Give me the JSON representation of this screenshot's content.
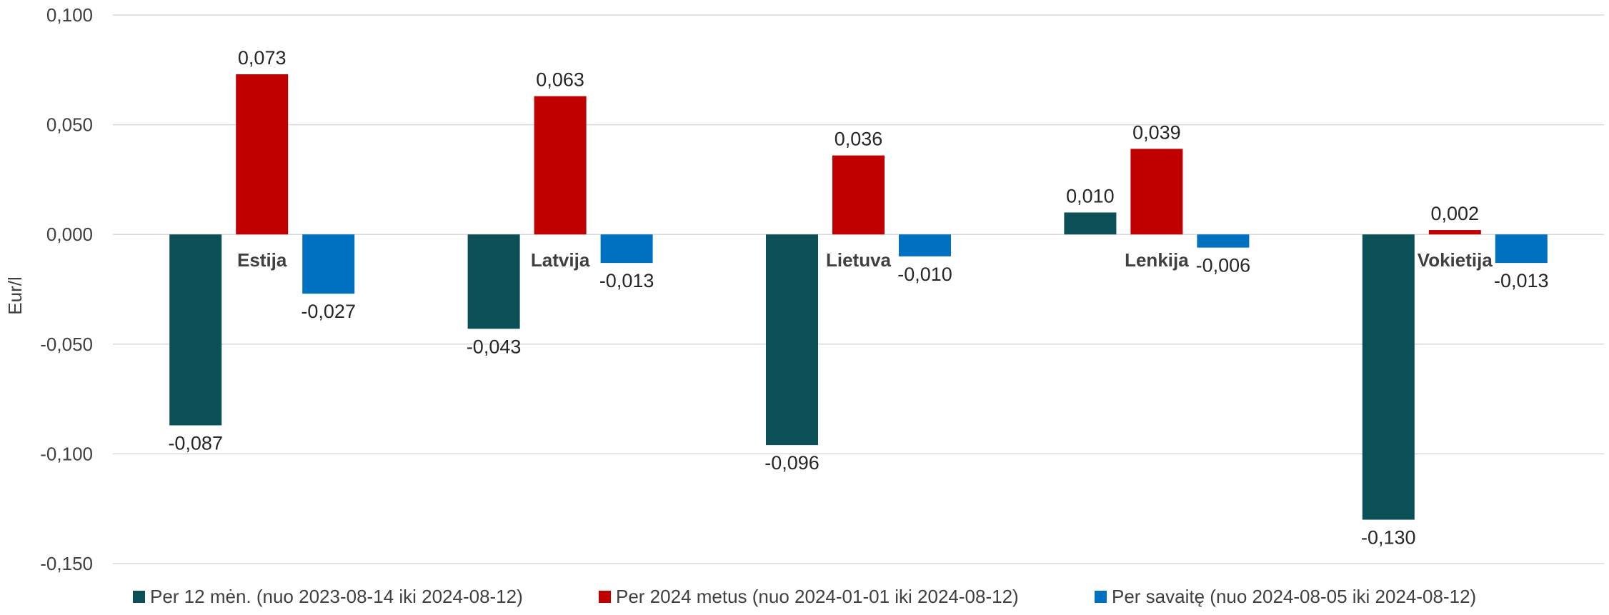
{
  "chart_data": {
    "type": "bar",
    "title": "",
    "ylabel": "Eur/l",
    "xlabel": "",
    "ylim": [
      -0.15,
      0.1
    ],
    "yticks": [
      0.1,
      0.05,
      0.0,
      -0.05,
      -0.1,
      -0.15
    ],
    "ytick_labels": [
      "0,100",
      "0,050",
      "0,000",
      "-0,050",
      "-0,100",
      "-0,150"
    ],
    "grid": true,
    "legend_position": "bottom",
    "categories": [
      "Estija",
      "Latvija",
      "Lietuva",
      "Lenkija",
      "Vokietija"
    ],
    "series": [
      {
        "name": "Per 12 mėn. (nuo 2023-08-14 iki 2024-08-12)",
        "color": "#0b4f57",
        "values": [
          -0.087,
          -0.043,
          -0.096,
          0.01,
          -0.13
        ],
        "labels": [
          "-0,087",
          "-0,043",
          "-0,096",
          "0,010",
          "-0,130"
        ]
      },
      {
        "name": "Per 2024 metus (nuo 2024-01-01 iki 2024-08-12)",
        "color": "#c00000",
        "values": [
          0.073,
          0.063,
          0.036,
          0.039,
          0.002
        ],
        "labels": [
          "0,073",
          "0,063",
          "0,036",
          "0,039",
          "0,002"
        ]
      },
      {
        "name": "Per savaitę (nuo 2024-08-05 iki 2024-08-12)",
        "color": "#0070c0",
        "values": [
          -0.027,
          -0.013,
          -0.01,
          -0.006,
          -0.013
        ],
        "labels": [
          "-0,027",
          "-0,013",
          "-0,010",
          "-0,006",
          "-0,013"
        ]
      }
    ]
  }
}
